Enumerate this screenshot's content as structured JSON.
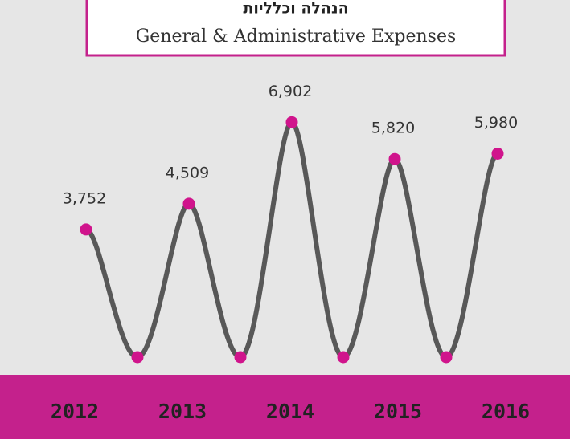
{
  "chart_data": {
    "type": "line",
    "title": "הנהלה וכלליות",
    "subtitle": "General & Administrative Expenses",
    "categories": [
      "2012",
      "2013",
      "2014",
      "2015",
      "2016"
    ],
    "series": [
      {
        "values": [
          3752,
          4509,
          6902,
          5820,
          5980
        ],
        "value_labels": [
          "3,752",
          "4,509",
          "6,902",
          "5,820",
          "5,980"
        ],
        "color": "#585858",
        "marker_color": "#d0148c"
      }
    ],
    "ylim": [
      0,
      10000
    ]
  }
}
